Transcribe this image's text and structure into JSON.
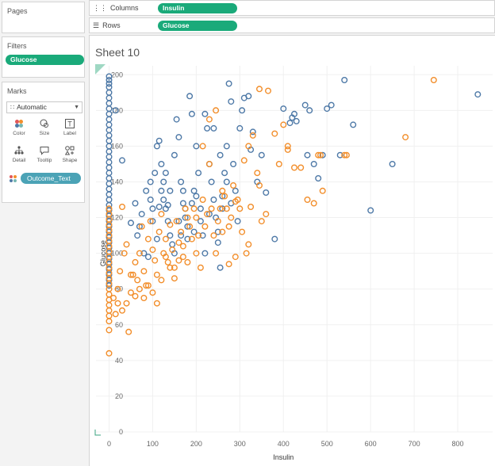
{
  "shelves": {
    "pages_label": "Pages",
    "filters_label": "Filters",
    "filter_pill": "Glucose",
    "columns_label": "Columns",
    "columns_pill": "Insulin",
    "rows_label": "Rows",
    "rows_pill": "Glucose"
  },
  "marks": {
    "title": "Marks",
    "type": "Automatic",
    "buttons": [
      "Color",
      "Size",
      "Label",
      "Detail",
      "Tooltip",
      "Shape"
    ],
    "color_field": "Outcome_Text"
  },
  "sheet": {
    "title": "Sheet 10"
  },
  "colors": {
    "blue": "#4e79a7",
    "orange": "#f28e2b",
    "pill_green": "#1aaa7a",
    "pill_teal": "#4ba3b6"
  },
  "chart_data": {
    "type": "scatter",
    "xlabel": "Insulin",
    "ylabel": "Glucose",
    "xlim": [
      -30,
      880
    ],
    "ylim": [
      0,
      205
    ],
    "x_ticks": [
      0,
      100,
      200,
      300,
      400,
      500,
      600,
      700,
      800
    ],
    "y_ticks": [
      0,
      20,
      40,
      60,
      80,
      100,
      120,
      140,
      160,
      180,
      200
    ],
    "series": [
      {
        "color": "#4e79a7",
        "points": [
          [
            0,
            199
          ],
          [
            0,
            197
          ],
          [
            0,
            195
          ],
          [
            0,
            193
          ],
          [
            0,
            190
          ],
          [
            0,
            187
          ],
          [
            0,
            184
          ],
          [
            0,
            181
          ],
          [
            0,
            178
          ],
          [
            0,
            175
          ],
          [
            0,
            172
          ],
          [
            0,
            169
          ],
          [
            0,
            166
          ],
          [
            0,
            163
          ],
          [
            0,
            160
          ],
          [
            0,
            157
          ],
          [
            0,
            154
          ],
          [
            0,
            151
          ],
          [
            0,
            148
          ],
          [
            0,
            145
          ],
          [
            0,
            142
          ],
          [
            0,
            139
          ],
          [
            0,
            136
          ],
          [
            0,
            133
          ],
          [
            0,
            130
          ],
          [
            0,
            127
          ],
          [
            0,
            124
          ],
          [
            0,
            121
          ],
          [
            0,
            118
          ],
          [
            0,
            115
          ],
          [
            0,
            112
          ],
          [
            0,
            109
          ],
          [
            0,
            106
          ],
          [
            0,
            103
          ],
          [
            0,
            100
          ],
          [
            0,
            97
          ],
          [
            0,
            94
          ],
          [
            0,
            91
          ],
          [
            0,
            88
          ],
          [
            0,
            85
          ],
          [
            0,
            82
          ],
          [
            15,
            180
          ],
          [
            30,
            152
          ],
          [
            50,
            117
          ],
          [
            65,
            110
          ],
          [
            80,
            100
          ],
          [
            90,
            98
          ],
          [
            95,
            130
          ],
          [
            100,
            118
          ],
          [
            105,
            145
          ],
          [
            110,
            160
          ],
          [
            115,
            163
          ],
          [
            120,
            150
          ],
          [
            125,
            140
          ],
          [
            130,
            125
          ],
          [
            135,
            118
          ],
          [
            140,
            110
          ],
          [
            145,
            105
          ],
          [
            150,
            155
          ],
          [
            155,
            175
          ],
          [
            160,
            165
          ],
          [
            165,
            140
          ],
          [
            170,
            128
          ],
          [
            175,
            120
          ],
          [
            180,
            115
          ],
          [
            185,
            188
          ],
          [
            190,
            178
          ],
          [
            195,
            135
          ],
          [
            200,
            160
          ],
          [
            205,
            145
          ],
          [
            210,
            125
          ],
          [
            215,
            110
          ],
          [
            220,
            178
          ],
          [
            225,
            170
          ],
          [
            230,
            150
          ],
          [
            235,
            140
          ],
          [
            240,
            130
          ],
          [
            245,
            120
          ],
          [
            250,
            112
          ],
          [
            255,
            92
          ],
          [
            260,
            125
          ],
          [
            265,
            145
          ],
          [
            270,
            160
          ],
          [
            275,
            195
          ],
          [
            280,
            185
          ],
          [
            285,
            150
          ],
          [
            290,
            135
          ],
          [
            295,
            118
          ],
          [
            300,
            170
          ],
          [
            305,
            180
          ],
          [
            310,
            187
          ],
          [
            320,
            188
          ],
          [
            325,
            158
          ],
          [
            330,
            168
          ],
          [
            340,
            140
          ],
          [
            350,
            155
          ],
          [
            360,
            134
          ],
          [
            380,
            108
          ],
          [
            400,
            181
          ],
          [
            415,
            173
          ],
          [
            420,
            176
          ],
          [
            425,
            178
          ],
          [
            430,
            174
          ],
          [
            450,
            183
          ],
          [
            455,
            155
          ],
          [
            460,
            180
          ],
          [
            470,
            150
          ],
          [
            480,
            142
          ],
          [
            490,
            155
          ],
          [
            500,
            181
          ],
          [
            510,
            183
          ],
          [
            530,
            155
          ],
          [
            540,
            197
          ],
          [
            560,
            172
          ],
          [
            600,
            124
          ],
          [
            650,
            150
          ],
          [
            846,
            189
          ],
          [
            60,
            128
          ],
          [
            70,
            115
          ],
          [
            75,
            122
          ],
          [
            85,
            135
          ],
          [
            95,
            140
          ],
          [
            100,
            125
          ],
          [
            110,
            108
          ],
          [
            115,
            126
          ],
          [
            120,
            135
          ],
          [
            125,
            130
          ],
          [
            130,
            145
          ],
          [
            135,
            127
          ],
          [
            140,
            135
          ],
          [
            150,
            100
          ],
          [
            160,
            118
          ],
          [
            165,
            110
          ],
          [
            170,
            135
          ],
          [
            175,
            125
          ],
          [
            180,
            108
          ],
          [
            190,
            128
          ],
          [
            195,
            112
          ],
          [
            200,
            132
          ],
          [
            210,
            118
          ],
          [
            220,
            100
          ],
          [
            230,
            122
          ],
          [
            240,
            170
          ],
          [
            250,
            106
          ],
          [
            255,
            155
          ],
          [
            260,
            132
          ],
          [
            270,
            140
          ],
          [
            280,
            128
          ]
        ]
      },
      {
        "color": "#f28e2b",
        "points": [
          [
            0,
            44
          ],
          [
            0,
            57
          ],
          [
            0,
            62
          ],
          [
            0,
            65
          ],
          [
            0,
            68
          ],
          [
            0,
            71
          ],
          [
            0,
            74
          ],
          [
            0,
            77
          ],
          [
            0,
            80
          ],
          [
            0,
            83
          ],
          [
            0,
            86
          ],
          [
            0,
            89
          ],
          [
            0,
            92
          ],
          [
            0,
            95
          ],
          [
            0,
            98
          ],
          [
            0,
            101
          ],
          [
            0,
            104
          ],
          [
            0,
            107
          ],
          [
            0,
            110
          ],
          [
            0,
            113
          ],
          [
            0,
            116
          ],
          [
            0,
            119
          ],
          [
            0,
            122
          ],
          [
            0,
            125
          ],
          [
            15,
            66
          ],
          [
            20,
            80
          ],
          [
            25,
            90
          ],
          [
            30,
            126
          ],
          [
            35,
            100
          ],
          [
            40,
            105
          ],
          [
            45,
            56
          ],
          [
            50,
            78
          ],
          [
            55,
            88
          ],
          [
            60,
            95
          ],
          [
            65,
            85
          ],
          [
            70,
            100
          ],
          [
            75,
            115
          ],
          [
            80,
            90
          ],
          [
            85,
            82
          ],
          [
            90,
            108
          ],
          [
            95,
            118
          ],
          [
            100,
            102
          ],
          [
            105,
            96
          ],
          [
            110,
            88
          ],
          [
            115,
            112
          ],
          [
            120,
            122
          ],
          [
            125,
            100
          ],
          [
            130,
            108
          ],
          [
            135,
            95
          ],
          [
            140,
            116
          ],
          [
            145,
            102
          ],
          [
            150,
            92
          ],
          [
            155,
            118
          ],
          [
            160,
            106
          ],
          [
            165,
            112
          ],
          [
            170,
            98
          ],
          [
            175,
            125
          ],
          [
            180,
            120
          ],
          [
            185,
            115
          ],
          [
            190,
            108
          ],
          [
            195,
            125
          ],
          [
            200,
            100
          ],
          [
            205,
            110
          ],
          [
            210,
            92
          ],
          [
            215,
            130
          ],
          [
            220,
            115
          ],
          [
            225,
            122
          ],
          [
            230,
            150
          ],
          [
            235,
            125
          ],
          [
            240,
            110
          ],
          [
            245,
            100
          ],
          [
            250,
            118
          ],
          [
            255,
            125
          ],
          [
            260,
            135
          ],
          [
            265,
            132
          ],
          [
            270,
            125
          ],
          [
            275,
            115
          ],
          [
            280,
            120
          ],
          [
            285,
            138
          ],
          [
            290,
            129
          ],
          [
            295,
            130
          ],
          [
            300,
            125
          ],
          [
            310,
            152
          ],
          [
            315,
            100
          ],
          [
            320,
            105
          ],
          [
            325,
            126
          ],
          [
            330,
            166
          ],
          [
            340,
            145
          ],
          [
            345,
            138
          ],
          [
            350,
            118
          ],
          [
            360,
            122
          ],
          [
            380,
            167
          ],
          [
            390,
            150
          ],
          [
            410,
            158
          ],
          [
            440,
            148
          ],
          [
            480,
            155
          ],
          [
            490,
            135
          ],
          [
            540,
            155
          ],
          [
            545,
            155
          ],
          [
            680,
            165
          ],
          [
            745,
            197
          ],
          [
            10,
            75
          ],
          [
            20,
            72
          ],
          [
            30,
            68
          ],
          [
            40,
            72
          ],
          [
            50,
            88
          ],
          [
            60,
            76
          ],
          [
            70,
            80
          ],
          [
            80,
            75
          ],
          [
            90,
            82
          ],
          [
            100,
            78
          ],
          [
            110,
            72
          ],
          [
            120,
            85
          ],
          [
            130,
            98
          ],
          [
            140,
            92
          ],
          [
            150,
            86
          ],
          [
            160,
            96
          ],
          [
            170,
            104
          ],
          [
            180,
            95
          ],
          [
            200,
            120
          ],
          [
            215,
            160
          ],
          [
            230,
            175
          ],
          [
            245,
            180
          ],
          [
            260,
            112
          ],
          [
            275,
            94
          ],
          [
            290,
            98
          ],
          [
            305,
            112
          ],
          [
            320,
            160
          ],
          [
            345,
            192
          ],
          [
            365,
            191
          ],
          [
            400,
            172
          ],
          [
            410,
            160
          ],
          [
            425,
            148
          ],
          [
            455,
            130
          ],
          [
            470,
            128
          ],
          [
            485,
            155
          ]
        ]
      }
    ]
  }
}
